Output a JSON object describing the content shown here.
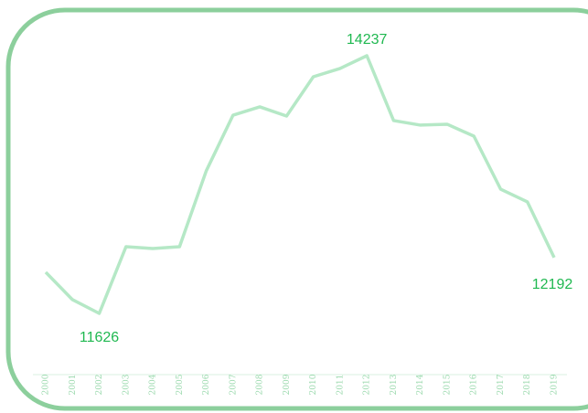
{
  "chart_data": {
    "type": "line",
    "categories": [
      "2000",
      "2001",
      "2002",
      "2003",
      "2004",
      "2005",
      "2006",
      "2007",
      "2008",
      "2009",
      "2010",
      "2011",
      "2012",
      "2013",
      "2014",
      "2015",
      "2016",
      "2017",
      "2018",
      "2019"
    ],
    "values": [
      12043,
      11765,
      11626,
      12302,
      12283,
      12302,
      13071,
      13635,
      13719,
      13626,
      14024,
      14108,
      14237,
      13580,
      13534,
      13543,
      13422,
      12885,
      12756,
      12192
    ],
    "color": "#b5e8c6"
  }
}
